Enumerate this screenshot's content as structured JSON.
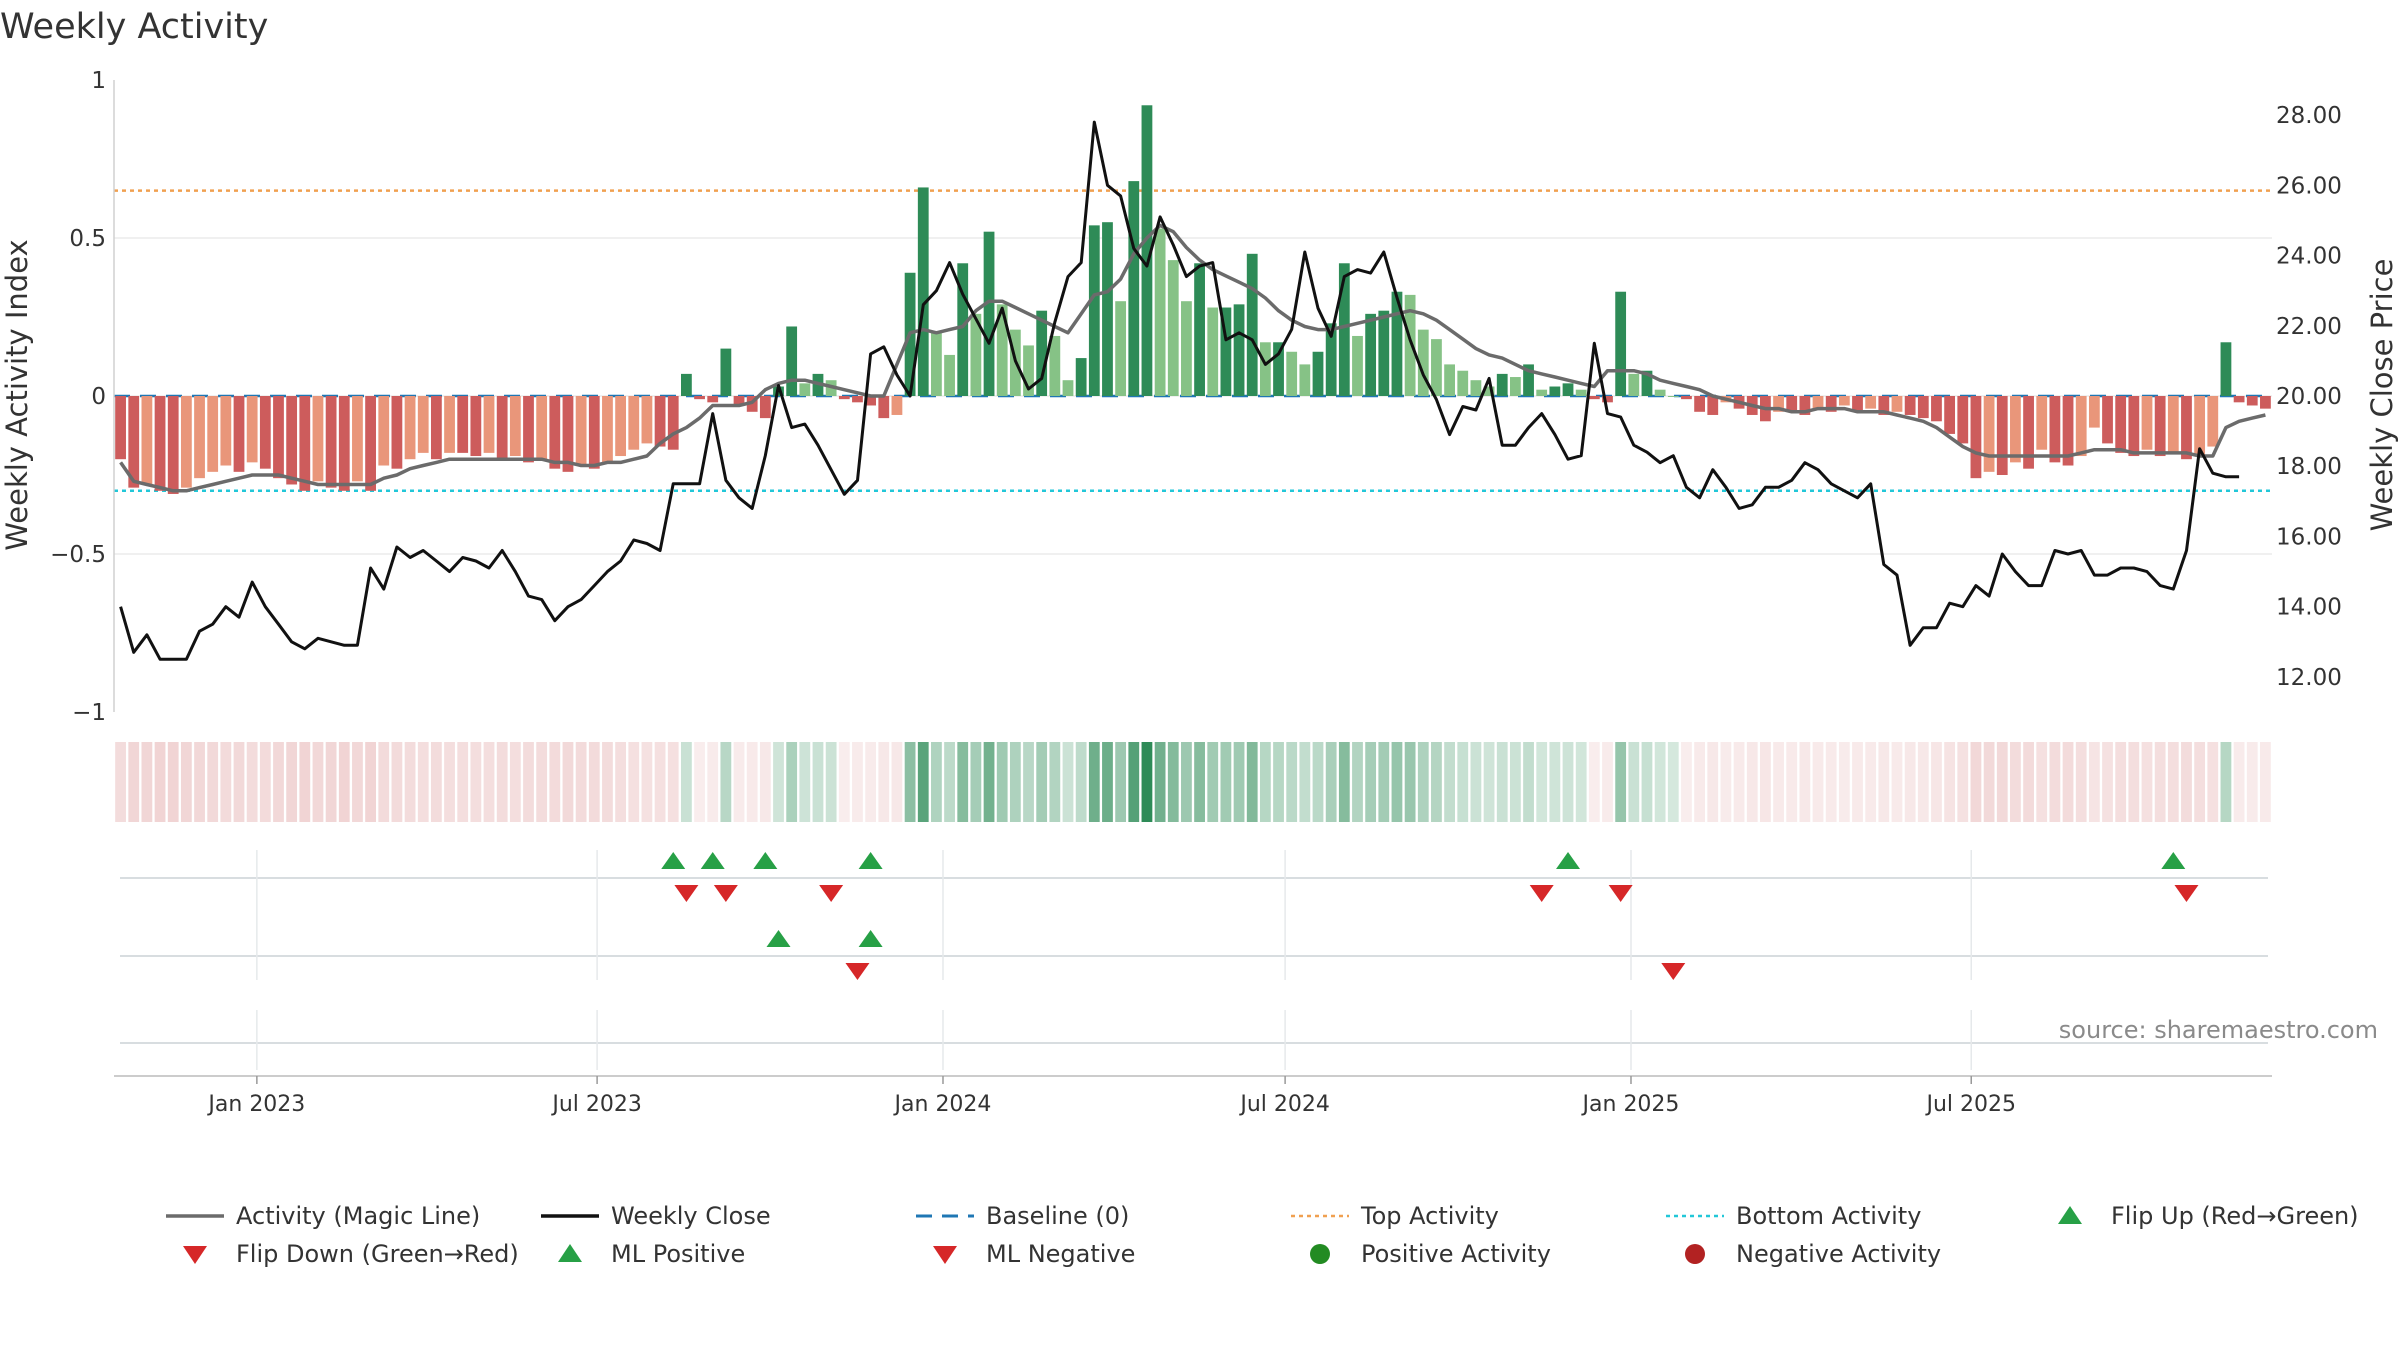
{
  "title": "Weekly Activity",
  "source": "source: sharemaestro.com",
  "colors": {
    "strong_green": "#2e8b57",
    "light_green": "#86c286",
    "strong_red": "#cd5c5c",
    "light_red": "#e9967a",
    "magic_line": "#6b6b6b",
    "close_line": "#111111",
    "baseline": "#1f77b4",
    "top_line": "#f0a050",
    "bottom_line": "#22c7d8",
    "flip_up": "#27a046",
    "flip_down": "#d62728"
  },
  "chart_data": {
    "type": "bar+line",
    "title": "Weekly Activity",
    "ylabel": "Weekly Activity Index",
    "y2label": "Weekly Close Price",
    "ylim": [
      -1,
      1
    ],
    "y2lim": [
      11,
      29
    ],
    "yticks": [
      "−1",
      "−0.5",
      "0",
      "0.5",
      "1"
    ],
    "y2ticks": [
      "12.00",
      "14.00",
      "16.00",
      "18.00",
      "20.00",
      "22.00",
      "24.00",
      "26.00",
      "28.00"
    ],
    "x_start": "2022-10-17",
    "x_ticks": [
      {
        "label": "Jan 2023",
        "date": "2023-01-01"
      },
      {
        "label": "Jul 2023",
        "date": "2023-07-01"
      },
      {
        "label": "Jan 2024",
        "date": "2024-01-01"
      },
      {
        "label": "Jul 2024",
        "date": "2024-07-01"
      },
      {
        "label": "Jan 2025",
        "date": "2025-01-01"
      },
      {
        "label": "Jul 2025",
        "date": "2025-07-01"
      }
    ],
    "top_activity": 0.65,
    "bottom_activity": -0.3,
    "activity": [
      -0.2,
      -0.29,
      -0.28,
      -0.3,
      -0.31,
      -0.29,
      -0.26,
      -0.24,
      -0.22,
      -0.24,
      -0.21,
      -0.23,
      -0.26,
      -0.28,
      -0.3,
      -0.27,
      -0.29,
      -0.3,
      -0.27,
      -0.3,
      -0.22,
      -0.23,
      -0.2,
      -0.18,
      -0.2,
      -0.18,
      -0.18,
      -0.19,
      -0.18,
      -0.2,
      -0.19,
      -0.21,
      -0.2,
      -0.23,
      -0.24,
      -0.22,
      -0.23,
      -0.21,
      -0.19,
      -0.17,
      -0.15,
      -0.16,
      -0.17,
      0.07,
      -0.01,
      -0.02,
      0.15,
      -0.03,
      -0.05,
      -0.07,
      0.03,
      0.22,
      0.04,
      0.07,
      0.05,
      -0.01,
      -0.02,
      -0.03,
      -0.07,
      -0.06,
      0.39,
      0.66,
      0.2,
      0.13,
      0.42,
      0.26,
      0.52,
      0.29,
      0.21,
      0.16,
      0.27,
      0.19,
      0.05,
      0.12,
      0.54,
      0.55,
      0.3,
      0.68,
      0.92,
      0.53,
      0.43,
      0.3,
      0.42,
      0.28,
      0.28,
      0.29,
      0.45,
      0.17,
      0.17,
      0.14,
      0.1,
      0.14,
      0.23,
      0.42,
      0.19,
      0.26,
      0.27,
      0.33,
      0.32,
      0.21,
      0.18,
      0.1,
      0.08,
      0.05,
      0.03,
      0.07,
      0.06,
      0.1,
      0.02,
      0.03,
      0.04,
      0.02,
      -0.01,
      -0.02,
      0.33,
      0.07,
      0.08,
      0.02,
      0.0,
      -0.01,
      -0.05,
      -0.06,
      -0.02,
      -0.04,
      -0.06,
      -0.08,
      -0.05,
      -0.05,
      -0.06,
      -0.04,
      -0.05,
      -0.03,
      -0.05,
      -0.04,
      -0.06,
      -0.05,
      -0.06,
      -0.07,
      -0.08,
      -0.12,
      -0.15,
      -0.26,
      -0.24,
      -0.25,
      -0.21,
      -0.23,
      -0.17,
      -0.21,
      -0.22,
      -0.19,
      -0.1,
      -0.15,
      -0.18,
      -0.19,
      -0.17,
      -0.19,
      -0.18,
      -0.2,
      -0.19,
      -0.16,
      0.17,
      -0.02,
      -0.03,
      -0.04
    ],
    "magic_line": [
      -0.21,
      -0.27,
      -0.28,
      -0.29,
      -0.3,
      -0.3,
      -0.29,
      -0.28,
      -0.27,
      -0.26,
      -0.25,
      -0.25,
      -0.25,
      -0.26,
      -0.27,
      -0.28,
      -0.28,
      -0.28,
      -0.28,
      -0.28,
      -0.26,
      -0.25,
      -0.23,
      -0.22,
      -0.21,
      -0.2,
      -0.2,
      -0.2,
      -0.2,
      -0.2,
      -0.2,
      -0.2,
      -0.2,
      -0.21,
      -0.21,
      -0.22,
      -0.22,
      -0.21,
      -0.21,
      -0.2,
      -0.19,
      -0.15,
      -0.12,
      -0.1,
      -0.07,
      -0.03,
      -0.03,
      -0.03,
      -0.02,
      0.02,
      0.04,
      0.05,
      0.05,
      0.04,
      0.03,
      0.02,
      0.01,
      0.0,
      0.0,
      0.1,
      0.2,
      0.21,
      0.2,
      0.21,
      0.22,
      0.27,
      0.3,
      0.3,
      0.28,
      0.26,
      0.24,
      0.22,
      0.2,
      0.26,
      0.32,
      0.33,
      0.37,
      0.45,
      0.5,
      0.54,
      0.52,
      0.47,
      0.43,
      0.4,
      0.38,
      0.36,
      0.34,
      0.31,
      0.27,
      0.24,
      0.22,
      0.21,
      0.21,
      0.22,
      0.23,
      0.24,
      0.25,
      0.26,
      0.27,
      0.26,
      0.24,
      0.21,
      0.18,
      0.15,
      0.13,
      0.12,
      0.1,
      0.08,
      0.07,
      0.06,
      0.05,
      0.04,
      0.03,
      0.08,
      0.08,
      0.08,
      0.07,
      0.05,
      0.04,
      0.03,
      0.02,
      0.0,
      -0.01,
      -0.02,
      -0.03,
      -0.04,
      -0.04,
      -0.05,
      -0.05,
      -0.04,
      -0.04,
      -0.04,
      -0.05,
      -0.05,
      -0.05,
      -0.06,
      -0.07,
      -0.08,
      -0.1,
      -0.13,
      -0.16,
      -0.18,
      -0.19,
      -0.19,
      -0.19,
      -0.19,
      -0.19,
      -0.19,
      -0.19,
      -0.18,
      -0.17,
      -0.17,
      -0.17,
      -0.18,
      -0.18,
      -0.18,
      -0.18,
      -0.18,
      -0.19,
      -0.19,
      -0.1,
      -0.08,
      -0.07,
      -0.06
    ],
    "weekly_close": [
      14.0,
      12.7,
      13.2,
      12.5,
      12.5,
      12.5,
      13.3,
      13.5,
      14.0,
      13.7,
      14.7,
      14.0,
      13.5,
      13.0,
      12.8,
      13.1,
      13.0,
      12.9,
      12.9,
      15.1,
      14.5,
      15.7,
      15.4,
      15.6,
      15.3,
      15.0,
      15.4,
      15.3,
      15.1,
      15.6,
      15.0,
      14.3,
      14.2,
      13.6,
      14.0,
      14.2,
      14.6,
      15.0,
      15.3,
      15.9,
      15.8,
      15.6,
      17.5,
      17.5,
      17.5,
      19.5,
      17.6,
      17.1,
      16.8,
      18.3,
      20.3,
      19.1,
      19.2,
      18.6,
      17.9,
      17.2,
      17.6,
      21.2,
      21.4,
      20.6,
      20.0,
      22.6,
      23.0,
      23.8,
      22.9,
      22.2,
      21.5,
      22.5,
      21.0,
      20.2,
      20.5,
      22.1,
      23.4,
      23.8,
      27.8,
      26.0,
      25.7,
      24.2,
      23.7,
      25.1,
      24.3,
      23.4,
      23.7,
      23.8,
      21.6,
      21.8,
      21.6,
      20.9,
      21.2,
      21.9,
      24.1,
      22.5,
      21.7,
      23.4,
      23.6,
      23.5,
      24.1,
      22.8,
      21.6,
      20.6,
      19.9,
      18.9,
      19.7,
      19.6,
      20.5,
      18.6,
      18.6,
      19.1,
      19.5,
      18.9,
      18.2,
      18.3,
      21.5,
      19.5,
      19.4,
      18.6,
      18.4,
      18.1,
      18.3,
      17.4,
      17.1,
      17.9,
      17.4,
      16.8,
      16.9,
      17.4,
      17.4,
      17.6,
      18.1,
      17.9,
      17.5,
      17.3,
      17.1,
      17.5,
      15.2,
      14.9,
      12.9,
      13.4,
      13.4,
      14.1,
      14.0,
      14.6,
      14.3,
      15.5,
      15.0,
      14.6,
      14.6,
      15.6,
      15.5,
      15.6,
      14.9,
      14.9,
      15.1,
      15.1,
      15.0,
      14.6,
      14.5,
      15.6,
      18.5,
      17.8,
      17.7,
      17.7
    ],
    "flip_up_weeks": [
      42,
      45,
      49,
      57,
      110,
      156
    ],
    "flip_down_weeks": [
      43,
      46,
      54,
      108,
      114,
      157
    ],
    "ml_positive_weeks": [
      50,
      57
    ],
    "ml_negative_weeks": [
      56,
      118
    ]
  },
  "legend": [
    {
      "key": "magic",
      "label": "Activity (Magic Line)"
    },
    {
      "key": "close",
      "label": "Weekly Close"
    },
    {
      "key": "baseline",
      "label": "Baseline (0)"
    },
    {
      "key": "top",
      "label": "Top Activity"
    },
    {
      "key": "bottom",
      "label": "Bottom Activity"
    },
    {
      "key": "flipup",
      "label": "Flip Up (Red→Green)"
    },
    {
      "key": "flipdown",
      "label": "Flip Down (Green→Red)"
    },
    {
      "key": "mlpos",
      "label": "ML Positive"
    },
    {
      "key": "mlneg",
      "label": "ML Negative"
    },
    {
      "key": "posact",
      "label": "Positive Activity"
    },
    {
      "key": "negact",
      "label": "Negative Activity"
    }
  ]
}
